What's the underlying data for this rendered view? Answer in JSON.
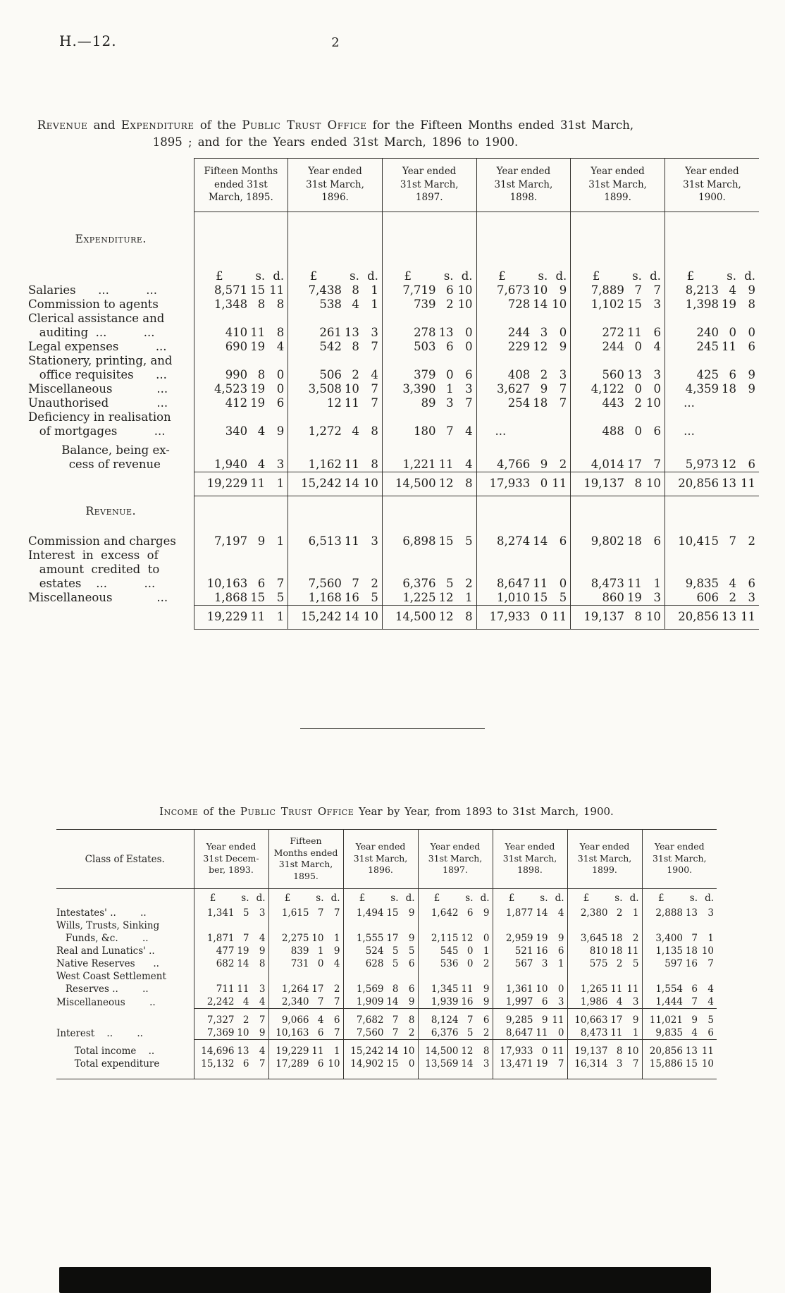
{
  "page": {
    "doc_ref": "H.—12.",
    "page_number": "2"
  },
  "table1": {
    "title_segments": [
      {
        "t": "Revenue",
        "sc": true
      },
      {
        "t": " and ",
        "sc": false
      },
      {
        "t": "Expenditure",
        "sc": true
      },
      {
        "t": " of the ",
        "sc": false
      },
      {
        "t": "Public Trust Office",
        "sc": true
      },
      {
        "t": " for the Fifteen Months ended 31st March,",
        "sc": false
      }
    ],
    "title_line2": "1895 ; and for the Years ended 31st March, 1896 to 1900.",
    "col_headers": [
      [
        "Fifteen Months",
        "ended 31st",
        "March, 1895."
      ],
      [
        "Year ended",
        "31st March,",
        "1896."
      ],
      [
        "Year ended",
        "31st March,",
        "1897."
      ],
      [
        "Year ended",
        "31st March,",
        "1898."
      ],
      [
        "Year ended",
        "31st March,",
        "1899."
      ],
      [
        "Year ended",
        "31st March,",
        "1900."
      ]
    ],
    "currency_headers": [
      "£",
      "s.",
      "d."
    ],
    "expenditure_heading": "Expenditure.",
    "revenue_heading": "Revenue.",
    "expenditure_rows": [
      {
        "label_lines": [
          "Salaries      ...          ..."
        ],
        "values": [
          [
            "8,571",
            "15",
            "11"
          ],
          [
            "7,438",
            "8",
            "1"
          ],
          [
            "7,719",
            "6",
            "10"
          ],
          [
            "7,673",
            "10",
            "9"
          ],
          [
            "7,889",
            "7",
            "7"
          ],
          [
            "8,213",
            "4",
            "9"
          ]
        ]
      },
      {
        "label_lines": [
          "Commission to agents"
        ],
        "values": [
          [
            "1,348",
            "8",
            "8"
          ],
          [
            "538",
            "4",
            "1"
          ],
          [
            "739",
            "2",
            "10"
          ],
          [
            "728",
            "14",
            "10"
          ],
          [
            "1,102",
            "15",
            "3"
          ],
          [
            "1,398",
            "19",
            "8"
          ]
        ]
      },
      {
        "label_lines": [
          "Clerical assistance and",
          "   auditing  ...          ..."
        ],
        "values": [
          [
            "410",
            "11",
            "8"
          ],
          [
            "261",
            "13",
            "3"
          ],
          [
            "278",
            "13",
            "0"
          ],
          [
            "244",
            "3",
            "0"
          ],
          [
            "272",
            "11",
            "6"
          ],
          [
            "240",
            "0",
            "0"
          ]
        ]
      },
      {
        "label_lines": [
          "Legal expenses          ..."
        ],
        "values": [
          [
            "690",
            "19",
            "4"
          ],
          [
            "542",
            "8",
            "7"
          ],
          [
            "503",
            "6",
            "0"
          ],
          [
            "229",
            "12",
            "9"
          ],
          [
            "244",
            "0",
            "4"
          ],
          [
            "245",
            "11",
            "6"
          ]
        ]
      },
      {
        "label_lines": [
          "Stationery, printing, and",
          "   office requisites      ..."
        ],
        "values": [
          [
            "990",
            "8",
            "0"
          ],
          [
            "506",
            "2",
            "4"
          ],
          [
            "379",
            "0",
            "6"
          ],
          [
            "408",
            "2",
            "3"
          ],
          [
            "560",
            "13",
            "3"
          ],
          [
            "425",
            "6",
            "9"
          ]
        ]
      },
      {
        "label_lines": [
          "Miscellaneous            ..."
        ],
        "values": [
          [
            "4,523",
            "19",
            "0"
          ],
          [
            "3,508",
            "10",
            "7"
          ],
          [
            "3,390",
            "1",
            "3"
          ],
          [
            "3,627",
            "9",
            "7"
          ],
          [
            "4,122",
            "0",
            "0"
          ],
          [
            "4,359",
            "18",
            "9"
          ]
        ]
      },
      {
        "label_lines": [
          "Unauthorised             ..."
        ],
        "values": [
          [
            "412",
            "19",
            "6"
          ],
          [
            "12",
            "11",
            "7"
          ],
          [
            "89",
            "3",
            "7"
          ],
          [
            "254",
            "18",
            "7"
          ],
          [
            "443",
            "2",
            "10"
          ],
          [
            "...",
            "",
            ""
          ]
        ]
      },
      {
        "label_lines": [
          "Deficiency in realisation",
          "   of mortgages          ..."
        ],
        "values": [
          [
            "340",
            "4",
            "9"
          ],
          [
            "1,272",
            "4",
            "8"
          ],
          [
            "180",
            "7",
            "4"
          ],
          [
            "...",
            "",
            ""
          ],
          [
            "488",
            "0",
            "6"
          ],
          [
            "...",
            "",
            ""
          ]
        ]
      },
      {
        "label_lines": [
          "         Balance, being ex-",
          "           cess of revenue"
        ],
        "values": [
          [
            "1,940",
            "4",
            "3"
          ],
          [
            "1,162",
            "11",
            "8"
          ],
          [
            "1,221",
            "11",
            "4"
          ],
          [
            "4,766",
            "9",
            "2"
          ],
          [
            "4,014",
            "17",
            "7"
          ],
          [
            "5,973",
            "12",
            "6"
          ]
        ]
      }
    ],
    "expenditure_total": [
      [
        "19,229",
        "11",
        "1"
      ],
      [
        "15,242",
        "14",
        "10"
      ],
      [
        "14,500",
        "12",
        "8"
      ],
      [
        "17,933",
        "0",
        "11"
      ],
      [
        "19,137",
        "8",
        "10"
      ],
      [
        "20,856",
        "13",
        "11"
      ]
    ],
    "revenue_rows": [
      {
        "label_lines": [
          "Commission and charges"
        ],
        "values": [
          [
            "7,197",
            "9",
            "1"
          ],
          [
            "6,513",
            "11",
            "3"
          ],
          [
            "6,898",
            "15",
            "5"
          ],
          [
            "8,274",
            "14",
            "6"
          ],
          [
            "9,802",
            "18",
            "6"
          ],
          [
            "10,415",
            "7",
            "2"
          ]
        ]
      },
      {
        "label_lines": [
          "Interest  in  excess  of",
          "   amount  credited  to",
          "   estates    ...          ..."
        ],
        "values": [
          [
            "10,163",
            "6",
            "7"
          ],
          [
            "7,560",
            "7",
            "2"
          ],
          [
            "6,376",
            "5",
            "2"
          ],
          [
            "8,647",
            "11",
            "0"
          ],
          [
            "8,473",
            "11",
            "1"
          ],
          [
            "9,835",
            "4",
            "6"
          ]
        ]
      },
      {
        "label_lines": [
          "Miscellaneous            ..."
        ],
        "values": [
          [
            "1,868",
            "15",
            "5"
          ],
          [
            "1,168",
            "16",
            "5"
          ],
          [
            "1,225",
            "12",
            "1"
          ],
          [
            "1,010",
            "15",
            "5"
          ],
          [
            "860",
            "19",
            "3"
          ],
          [
            "606",
            "2",
            "3"
          ]
        ]
      }
    ],
    "revenue_total": [
      [
        "19,229",
        "11",
        "1"
      ],
      [
        "15,242",
        "14",
        "10"
      ],
      [
        "14,500",
        "12",
        "8"
      ],
      [
        "17,933",
        "0",
        "11"
      ],
      [
        "19,137",
        "8",
        "10"
      ],
      [
        "20,856",
        "13",
        "11"
      ]
    ]
  },
  "table2": {
    "title_segments": [
      {
        "t": "Income",
        "sc": true
      },
      {
        "t": " of the ",
        "sc": false
      },
      {
        "t": "Public Trust Office",
        "sc": true
      },
      {
        "t": " Year by Year, from 1893 to 31st March, 1900.",
        "sc": false
      }
    ],
    "class_col_header": "Class of Estates.",
    "col_headers": [
      [
        "Year ended",
        "31st Decem-",
        "ber, 1893."
      ],
      [
        "Fifteen",
        "Months ended",
        "31st March,",
        "1895."
      ],
      [
        "Year ended",
        "31st March,",
        "1896."
      ],
      [
        "Year ended",
        "31st March,",
        "1897."
      ],
      [
        "Year ended",
        "31st March,",
        "1898."
      ],
      [
        "Year ended",
        "31st March,",
        "1899."
      ],
      [
        "Year ended",
        "31st March,",
        "1900."
      ]
    ],
    "currency_headers": [
      "£",
      "s.",
      "d."
    ],
    "rows": [
      {
        "label_lines": [
          "Intestates' ..        .."
        ],
        "values": [
          [
            "1,341",
            "5",
            "3"
          ],
          [
            "1,615",
            "7",
            "7"
          ],
          [
            "1,494",
            "15",
            "9"
          ],
          [
            "1,642",
            "6",
            "9"
          ],
          [
            "1,877",
            "14",
            "4"
          ],
          [
            "2,380",
            "2",
            "1"
          ],
          [
            "2,888",
            "13",
            "3"
          ]
        ]
      },
      {
        "label_lines": [
          "Wills, Trusts, Sinking",
          "   Funds, &c.        .."
        ],
        "values": [
          [
            "1,871",
            "7",
            "4"
          ],
          [
            "2,275",
            "10",
            "1"
          ],
          [
            "1,555",
            "17",
            "9"
          ],
          [
            "2,115",
            "12",
            "0"
          ],
          [
            "2,959",
            "19",
            "9"
          ],
          [
            "3,645",
            "18",
            "2"
          ],
          [
            "3,400",
            "7",
            "1"
          ]
        ]
      },
      {
        "label_lines": [
          "Real and Lunatics' .."
        ],
        "values": [
          [
            "477",
            "19",
            "9"
          ],
          [
            "839",
            "1",
            "9"
          ],
          [
            "524",
            "5",
            "5"
          ],
          [
            "545",
            "0",
            "1"
          ],
          [
            "521",
            "16",
            "6"
          ],
          [
            "810",
            "18",
            "11"
          ],
          [
            "1,135",
            "18",
            "10"
          ]
        ]
      },
      {
        "label_lines": [
          "Native Reserves      .."
        ],
        "values": [
          [
            "682",
            "14",
            "8"
          ],
          [
            "731",
            "0",
            "4"
          ],
          [
            "628",
            "5",
            "6"
          ],
          [
            "536",
            "0",
            "2"
          ],
          [
            "567",
            "3",
            "1"
          ],
          [
            "575",
            "2",
            "5"
          ],
          [
            "597",
            "16",
            "7"
          ]
        ]
      },
      {
        "label_lines": [
          "West Coast Settlement",
          "   Reserves ..        .."
        ],
        "values": [
          [
            "711",
            "11",
            "3"
          ],
          [
            "1,264",
            "17",
            "2"
          ],
          [
            "1,569",
            "8",
            "6"
          ],
          [
            "1,345",
            "11",
            "9"
          ],
          [
            "1,361",
            "10",
            "0"
          ],
          [
            "1,265",
            "11",
            "11"
          ],
          [
            "1,554",
            "6",
            "4"
          ]
        ]
      },
      {
        "label_lines": [
          "Miscellaneous        .."
        ],
        "values": [
          [
            "2,242",
            "4",
            "4"
          ],
          [
            "2,340",
            "7",
            "7"
          ],
          [
            "1,909",
            "14",
            "9"
          ],
          [
            "1,939",
            "16",
            "9"
          ],
          [
            "1,997",
            "6",
            "3"
          ],
          [
            "1,986",
            "4",
            "3"
          ],
          [
            "1,444",
            "7",
            "4"
          ]
        ]
      }
    ],
    "subtotal": [
      [
        "7,327",
        "2",
        "7"
      ],
      [
        "9,066",
        "4",
        "6"
      ],
      [
        "7,682",
        "7",
        "8"
      ],
      [
        "8,124",
        "7",
        "6"
      ],
      [
        "9,285",
        "9",
        "11"
      ],
      [
        "10,663",
        "17",
        "9"
      ],
      [
        "11,021",
        "9",
        "5"
      ]
    ],
    "interest_row": {
      "label_lines": [
        "Interest    ..        .."
      ],
      "values": [
        [
          "7,369",
          "10",
          "9"
        ],
        [
          "10,163",
          "6",
          "7"
        ],
        [
          "7,560",
          "7",
          "2"
        ],
        [
          "6,376",
          "5",
          "2"
        ],
        [
          "8,647",
          "11",
          "0"
        ],
        [
          "8,473",
          "11",
          "1"
        ],
        [
          "9,835",
          "4",
          "6"
        ]
      ]
    },
    "total_income": {
      "label_lines": [
        "      Total income    .."
      ],
      "values": [
        [
          "14,696",
          "13",
          "4"
        ],
        [
          "19,229",
          "11",
          "1"
        ],
        [
          "15,242",
          "14",
          "10"
        ],
        [
          "14,500",
          "12",
          "8"
        ],
        [
          "17,933",
          "0",
          "11"
        ],
        [
          "19,137",
          "8",
          "10"
        ],
        [
          "20,856",
          "13",
          "11"
        ]
      ]
    },
    "total_expenditure": {
      "label_lines": [
        "      Total expenditure"
      ],
      "values": [
        [
          "15,132",
          "6",
          "7"
        ],
        [
          "17,289",
          "6",
          "10"
        ],
        [
          "14,902",
          "15",
          "0"
        ],
        [
          "13,569",
          "14",
          "3"
        ],
        [
          "13,471",
          "19",
          "7"
        ],
        [
          "16,314",
          "3",
          "7"
        ],
        [
          "15,886",
          "15",
          "10"
        ]
      ]
    }
  }
}
